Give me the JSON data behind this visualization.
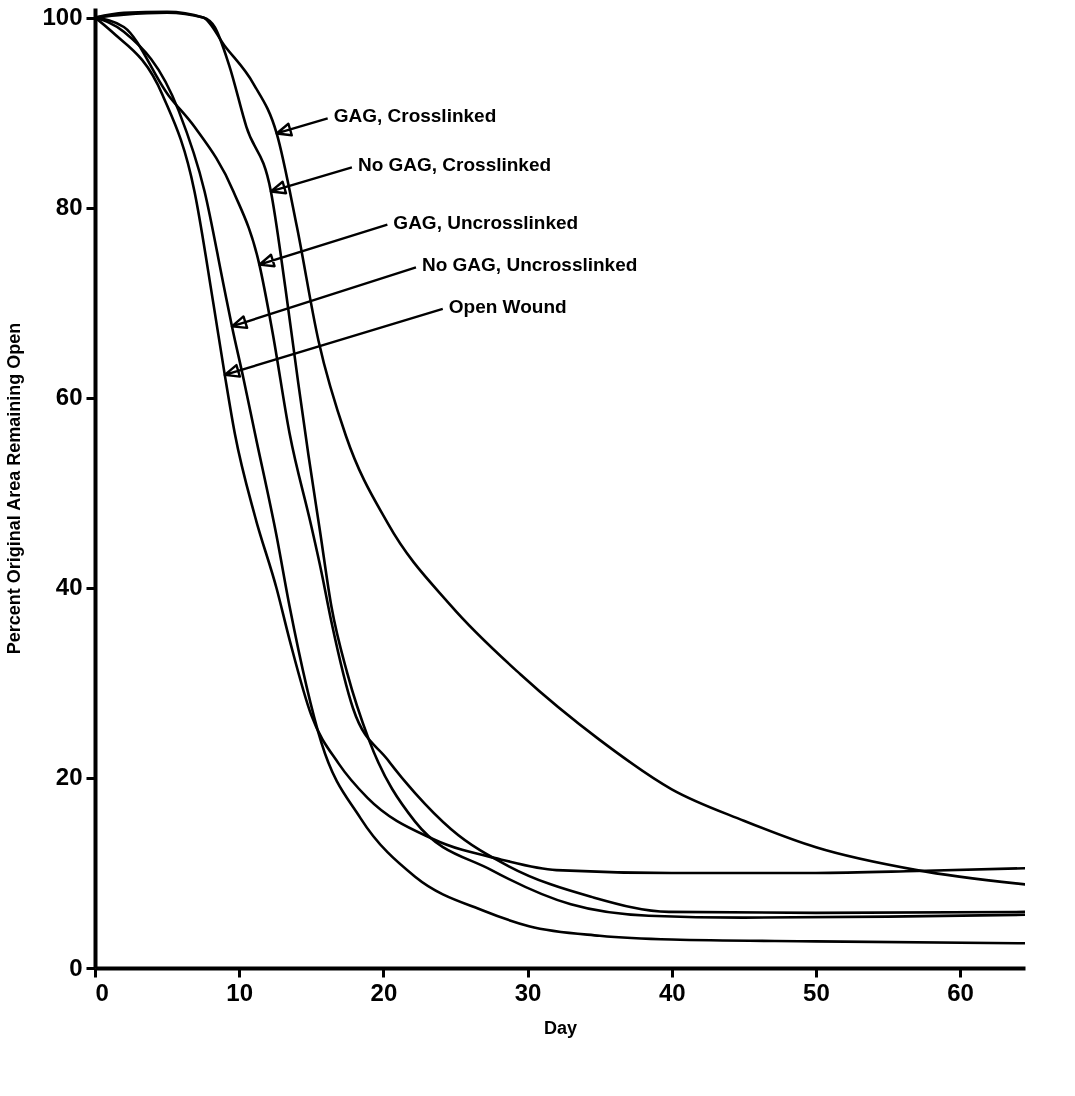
{
  "chart_data": {
    "type": "line",
    "xlabel": "Day",
    "ylabel": "Percent Original Area Remaining Open",
    "xlim": [
      0,
      64.5
    ],
    "xticks": [
      0,
      10,
      20,
      30,
      40,
      50,
      60
    ],
    "ylim": [
      0,
      101
    ],
    "yticks": [
      0,
      20,
      40,
      60,
      80,
      100
    ],
    "grid": false,
    "marker": "none",
    "line_style": "solid",
    "series": [
      {
        "color": "#000000",
        "x": [
          0,
          2,
          5,
          7.5,
          9,
          11,
          12.6,
          14,
          15.5,
          17.4,
          20.3,
          24.7,
          29.5,
          35,
          40,
          45,
          50,
          57,
          64.5
        ],
        "values": [
          100,
          100.5,
          100.6,
          100,
          97,
          93,
          87.8,
          78,
          66,
          56,
          46.8,
          38.1,
          30.9,
          24,
          18.8,
          15.5,
          12.7,
          10.3,
          8.8
        ]
      },
      {
        "color": "#000000",
        "x": [
          0,
          2,
          5,
          7.5,
          8.3,
          9.3,
          10.5,
          12.2,
          13.2,
          14.1,
          14.8,
          15.6,
          16.4,
          17.5,
          19,
          22.2,
          27.5,
          33,
          38.4,
          45,
          55,
          64.5
        ],
        "values": [
          100,
          100.3,
          100.5,
          100,
          99,
          95,
          88.5,
          81.7,
          71.6,
          61.5,
          54,
          46,
          38,
          31,
          24,
          15.4,
          10.3,
          6.7,
          5.5,
          5.3,
          5.4,
          5.6
        ]
      },
      {
        "color": "#000000",
        "x": [
          0,
          2,
          5.1,
          6.9,
          9.6,
          11.4,
          12.3,
          13.5,
          15,
          15.7,
          16.4,
          17.9,
          20.3,
          22.2,
          24.7,
          28.7,
          34.4,
          39.8,
          50,
          64.5
        ],
        "values": [
          100,
          99,
          91.8,
          88.5,
          81.7,
          74,
          67,
          56.2,
          46.5,
          41.7,
          36.4,
          27.3,
          21.9,
          18.4,
          14.6,
          10.7,
          7.5,
          5.9,
          5.8,
          5.9
        ]
      },
      {
        "color": "#000000",
        "x": [
          0,
          2,
          5.8,
          7.6,
          8.9,
          9.5,
          10.3,
          11.1,
          12.6,
          13.5,
          15.7,
          18.4,
          22.2,
          27,
          30.1,
          35,
          40,
          50,
          64.5
        ],
        "values": [
          100,
          98.5,
          90.2,
          81.7,
          72,
          67.5,
          62,
          56.2,
          45.4,
          38,
          23.7,
          15.8,
          9.6,
          6,
          4.4,
          3.4,
          3,
          2.8,
          2.6
        ]
      },
      {
        "color": "#000000",
        "x": [
          0,
          1.1,
          4.7,
          6.9,
          8.2,
          9,
          9.7,
          11.1,
          12.6,
          13.5,
          15,
          16.9,
          18.9,
          23.4,
          28.2,
          32,
          40,
          50,
          57,
          64.5
        ],
        "values": [
          100,
          98.6,
          91.8,
          81.7,
          70,
          62.4,
          56.2,
          47.5,
          39.9,
          34.5,
          26.6,
          21.5,
          17.9,
          13.6,
          11.4,
          10.3,
          10,
          10,
          10.2,
          10.5
        ]
      }
    ],
    "annotations": [
      {
        "text": "GAG, Crosslinked",
        "x": 12.6,
        "y": 87.8
      },
      {
        "text": "No GAG, Crosslinked",
        "x": 12.2,
        "y": 81.7
      },
      {
        "text": "GAG, Uncrosslinked",
        "x": 11.4,
        "y": 74
      },
      {
        "text": "No GAG, Uncrosslinked",
        "x": 9.5,
        "y": 67.5
      },
      {
        "text": "Open Wound",
        "x": 9,
        "y": 62.4
      }
    ]
  }
}
